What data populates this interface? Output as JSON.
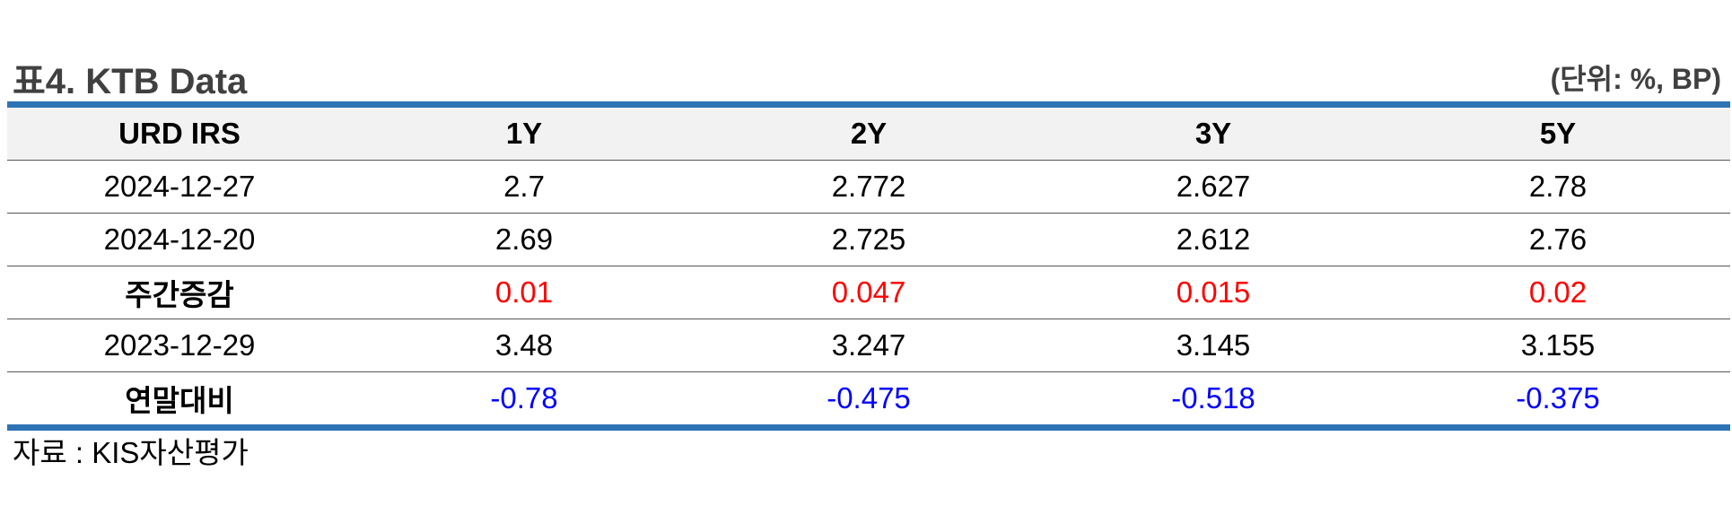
{
  "title": "표4. KTB Data",
  "unit": "(단위: %, BP)",
  "source": "자료 : KIS자산평가",
  "colors": {
    "border_accent": "#2e74b5",
    "header_bg": "#f2f2f2",
    "positive": "#ff0000",
    "negative": "#0000ff"
  },
  "table": {
    "headers": [
      "URD IRS",
      "1Y",
      "2Y",
      "3Y",
      "5Y"
    ],
    "rows": [
      {
        "label": "2024-12-27",
        "values": [
          "2.7",
          "2.772",
          "2.627",
          "2.78"
        ]
      },
      {
        "label": "2024-12-20",
        "values": [
          "2.69",
          "2.725",
          "2.612",
          "2.76"
        ]
      },
      {
        "label": "주간증감",
        "values": [
          "0.01",
          "0.047",
          "0.015",
          "0.02"
        ]
      },
      {
        "label": "2023-12-29",
        "values": [
          "3.48",
          "3.247",
          "3.145",
          "3.155"
        ]
      },
      {
        "label": "연말대비",
        "values": [
          "-0.78",
          "-0.475",
          "-0.518",
          "-0.375"
        ]
      }
    ]
  }
}
